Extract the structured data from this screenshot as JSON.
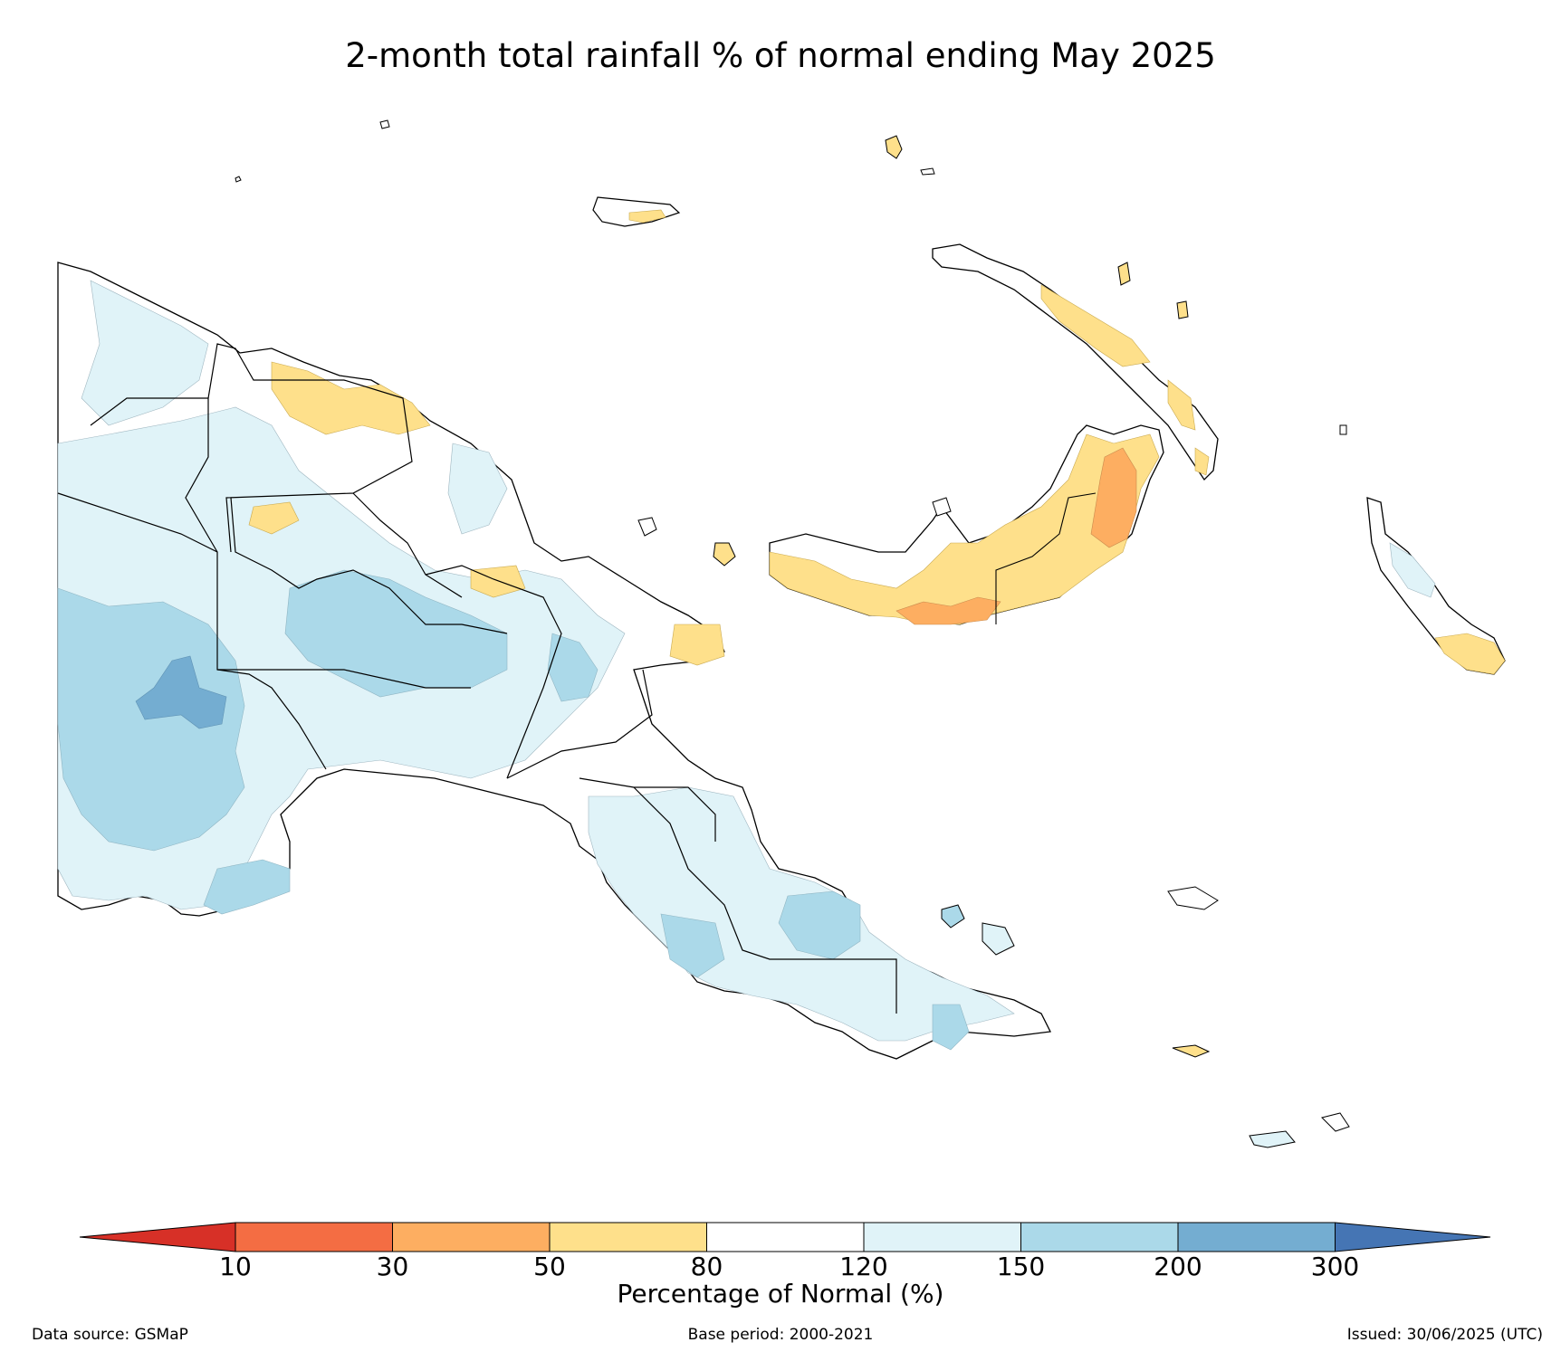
{
  "title": "2-month total rainfall % of normal ending May 2025",
  "legend": {
    "title": "Percentage of Normal (%)",
    "ticks": [
      "10",
      "30",
      "50",
      "80",
      "120",
      "150",
      "200",
      "300"
    ],
    "colors": {
      "below_10": "#d73027",
      "10_30": "#f46d43",
      "30_50": "#fdae61",
      "50_80": "#fee08b",
      "80_120": "#ffffff",
      "120_150": "#e0f3f8",
      "150_200": "#abd9e9",
      "200_300": "#74add1",
      "above_300": "#4575b4"
    }
  },
  "footer": {
    "source": "Data source: GSMaP",
    "base_period": "Base period: 2000-2021",
    "issued": "Issued: 30/06/2025 (UTC)"
  }
}
